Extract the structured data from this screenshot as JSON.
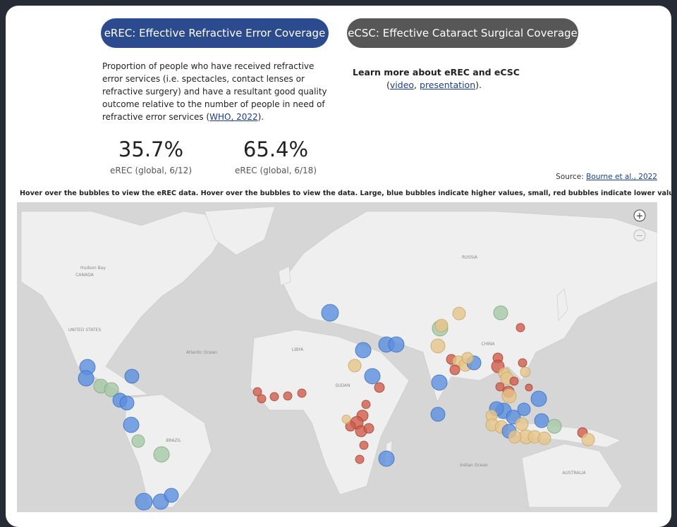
{
  "tabs": [
    {
      "label": "eREC: Effective Refractive Error Coverage"
    },
    {
      "label": "eCSC: Effective Cataract Surgical Coverage"
    }
  ],
  "description": {
    "text": "Proportion of people who have received refractive error services (i.e. spectacles, contact lenses or refractive surgery) and have a resultant good quality outcome relative to the number of people in need of refractive error services (",
    "link": "WHO, 2022",
    "end": ")."
  },
  "learn_more": {
    "heading": "Learn more about eREC and eCSC",
    "prefix": "(",
    "links": [
      "video",
      "presentation"
    ],
    "sep": ", ",
    "suffix": ")."
  },
  "kpis": [
    {
      "value": "35.7%",
      "label": "eREC (global, 6/12)"
    },
    {
      "value": "65.4%",
      "label": "eREC (global, 6/18)"
    }
  ],
  "source": {
    "prefix": "Source: ",
    "link": "Bourne et al., 2022"
  },
  "instruction": "Hover over the bubbles to view the eREC data. Hover over the bubbles to view the data. Large, blue bubbles indicate higher values, small, red bubbles indicate lower values.",
  "map": {
    "labels": [
      "CANADA",
      "UNITED STATES",
      "Hudson Bay",
      "Atlantic Ocean",
      "BRAZIL",
      "RUSSIA",
      "CHINA",
      "INDIA",
      "Indian Ocean",
      "AUSTRALIA",
      "LIBYA",
      "SUDAN"
    ]
  },
  "zoom": {
    "in": "+",
    "out": "−"
  }
}
